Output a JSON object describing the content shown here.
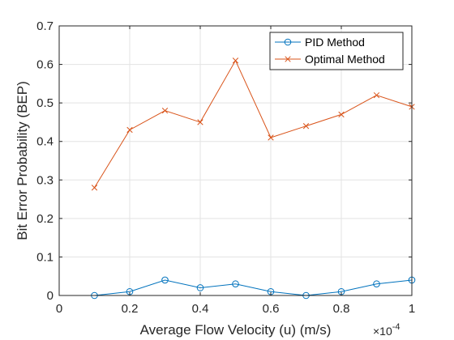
{
  "chart_data": {
    "type": "line",
    "xlabel": "Average Flow Velocity (u) (m/s)",
    "ylabel": "Bit Error Probability (BEP)",
    "x_exponent_base": "×10",
    "x_exponent_power": "-4",
    "xlim": [
      0,
      1
    ],
    "ylim": [
      0,
      0.7
    ],
    "x_ticks": [
      0,
      0.2,
      0.4,
      0.6,
      0.8,
      1
    ],
    "x_tick_labels": [
      "0",
      "0.2",
      "0.4",
      "0.6",
      "0.8",
      "1"
    ],
    "y_ticks": [
      0,
      0.1,
      0.2,
      0.3,
      0.4,
      0.5,
      0.6,
      0.7
    ],
    "y_tick_labels": [
      "0",
      "0.1",
      "0.2",
      "0.3",
      "0.4",
      "0.5",
      "0.6",
      "0.7"
    ],
    "grid": true,
    "legend_position": "top-right",
    "x": [
      0.1,
      0.2,
      0.3,
      0.4,
      0.5,
      0.6,
      0.7,
      0.8,
      0.9,
      1.0
    ],
    "series": [
      {
        "name": "PID Method",
        "color": "#0072BD",
        "marker": "circle",
        "values": [
          0.0,
          0.01,
          0.04,
          0.02,
          0.03,
          0.01,
          0.0,
          0.01,
          0.03,
          0.04
        ]
      },
      {
        "name": "Optimal Method",
        "color": "#D95319",
        "marker": "x",
        "values": [
          0.28,
          0.43,
          0.48,
          0.45,
          0.61,
          0.41,
          0.44,
          0.47,
          0.52,
          0.49
        ]
      }
    ]
  }
}
